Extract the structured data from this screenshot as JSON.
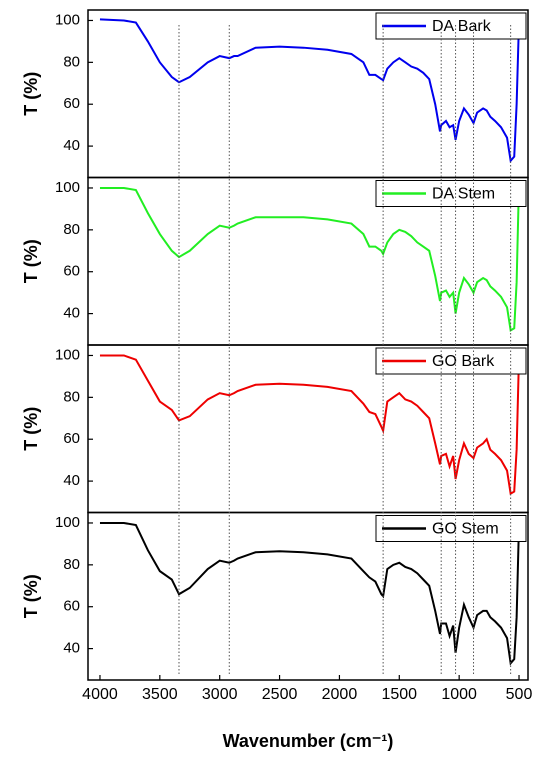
{
  "chart_data": [
    {
      "type": "line",
      "ylabel": "T (%)",
      "xlim": [
        4100,
        425
      ],
      "ylim": [
        25,
        105
      ],
      "yticks": [
        40,
        60,
        80,
        100
      ],
      "x": [
        4000,
        3800,
        3700,
        3600,
        3500,
        3400,
        3340,
        3250,
        3100,
        3000,
        2920,
        2880,
        2850,
        2700,
        2500,
        2300,
        2100,
        1900,
        1800,
        1750,
        1700,
        1650,
        1635,
        1600,
        1550,
        1500,
        1450,
        1400,
        1350,
        1300,
        1250,
        1200,
        1160,
        1150,
        1110,
        1080,
        1050,
        1030,
        1000,
        960,
        920,
        880,
        850,
        800,
        770,
        740,
        700,
        650,
        600,
        570,
        540,
        520,
        500
      ],
      "series": [
        {
          "name": "DA Bark",
          "color": "#0000ee",
          "values": [
            100.5,
            100,
            99,
            90,
            80,
            73,
            70.5,
            73,
            80,
            83,
            82,
            83,
            83,
            87,
            87.5,
            87,
            86,
            84,
            80,
            74,
            74,
            72,
            71.5,
            77,
            80,
            82,
            80,
            78,
            77,
            75,
            72,
            60,
            47,
            50,
            52,
            49,
            50,
            43,
            52,
            58,
            55,
            51,
            56,
            58,
            57,
            54,
            52,
            49,
            44,
            33,
            35,
            60,
            100
          ]
        }
      ]
    },
    {
      "type": "line",
      "ylabel": "T (%)",
      "xlim": [
        4100,
        425
      ],
      "ylim": [
        25,
        105
      ],
      "yticks": [
        40,
        60,
        80,
        100
      ],
      "x": [
        4000,
        3800,
        3700,
        3600,
        3500,
        3400,
        3340,
        3250,
        3100,
        3000,
        2920,
        2880,
        2850,
        2700,
        2500,
        2300,
        2100,
        1900,
        1800,
        1750,
        1700,
        1650,
        1635,
        1600,
        1550,
        1500,
        1450,
        1400,
        1350,
        1300,
        1250,
        1200,
        1160,
        1150,
        1110,
        1080,
        1050,
        1030,
        1000,
        960,
        920,
        880,
        850,
        800,
        770,
        740,
        700,
        650,
        600,
        570,
        540,
        520,
        500
      ],
      "series": [
        {
          "name": "DA Stem",
          "color": "#22ee22",
          "values": [
            100,
            100,
            99,
            88,
            78,
            70,
            67,
            70,
            78,
            82,
            81,
            82,
            83,
            86,
            86,
            86,
            85,
            83,
            78,
            72,
            72,
            70,
            68.5,
            74,
            78,
            80,
            79,
            77,
            74,
            72,
            70,
            58,
            46,
            50,
            51,
            48,
            50,
            40,
            50,
            57,
            54,
            50,
            55,
            57,
            56,
            53,
            51,
            48,
            43,
            32,
            33,
            55,
            103
          ]
        }
      ]
    },
    {
      "type": "line",
      "ylabel": "T (%)",
      "xlim": [
        4100,
        425
      ],
      "ylim": [
        25,
        105
      ],
      "yticks": [
        40,
        60,
        80,
        100
      ],
      "x": [
        4000,
        3800,
        3700,
        3600,
        3500,
        3400,
        3340,
        3250,
        3100,
        3000,
        2920,
        2880,
        2850,
        2700,
        2500,
        2300,
        2100,
        1900,
        1800,
        1750,
        1700,
        1650,
        1635,
        1600,
        1550,
        1500,
        1450,
        1400,
        1350,
        1300,
        1250,
        1200,
        1160,
        1150,
        1110,
        1080,
        1050,
        1030,
        1000,
        960,
        920,
        880,
        850,
        800,
        770,
        740,
        700,
        650,
        600,
        570,
        540,
        520,
        500
      ],
      "series": [
        {
          "name": "GO Bark",
          "color": "#ee0000",
          "values": [
            100,
            100,
            98,
            88,
            78,
            74,
            69,
            71,
            79,
            82,
            81,
            82,
            83,
            86,
            86.5,
            86,
            85,
            83,
            77,
            73,
            72,
            66,
            64,
            78,
            80,
            82,
            79,
            78,
            76,
            73,
            70,
            58,
            48,
            52,
            53,
            47,
            52,
            41,
            50,
            58,
            53,
            51,
            56,
            58,
            60,
            55,
            53,
            50,
            45,
            34,
            35,
            55,
            100
          ]
        }
      ]
    },
    {
      "type": "line",
      "ylabel": "T (%)",
      "xlabel": "Wavenumber (cm⁻¹)",
      "xlim": [
        4100,
        425
      ],
      "ylim": [
        25,
        105
      ],
      "yticks": [
        40,
        60,
        80,
        100
      ],
      "xticks": [
        4000,
        3500,
        3000,
        2500,
        2000,
        1500,
        1000,
        500
      ],
      "vlines": [
        3340,
        2920,
        1635,
        1150,
        1030,
        880,
        570
      ],
      "x": [
        4000,
        3800,
        3700,
        3600,
        3500,
        3400,
        3340,
        3250,
        3100,
        3000,
        2920,
        2880,
        2850,
        2700,
        2500,
        2300,
        2100,
        1900,
        1800,
        1750,
        1700,
        1650,
        1635,
        1600,
        1550,
        1500,
        1450,
        1400,
        1350,
        1300,
        1250,
        1200,
        1160,
        1150,
        1110,
        1080,
        1050,
        1030,
        1000,
        960,
        920,
        880,
        850,
        800,
        770,
        740,
        700,
        650,
        600,
        570,
        540,
        520,
        500
      ],
      "series": [
        {
          "name": "GO Stem",
          "color": "#000000",
          "values": [
            100,
            100,
            99,
            87,
            77,
            73,
            66,
            69,
            78,
            82,
            81,
            82,
            83,
            86,
            86.5,
            86,
            85,
            83,
            77,
            74,
            72,
            66,
            65,
            78,
            80,
            81,
            79,
            78,
            76,
            73,
            70,
            58,
            47,
            52,
            52,
            46,
            51,
            38,
            50,
            61,
            55,
            50,
            56,
            58,
            58,
            55,
            53,
            50,
            45,
            33,
            35,
            55,
            100
          ]
        }
      ]
    }
  ]
}
